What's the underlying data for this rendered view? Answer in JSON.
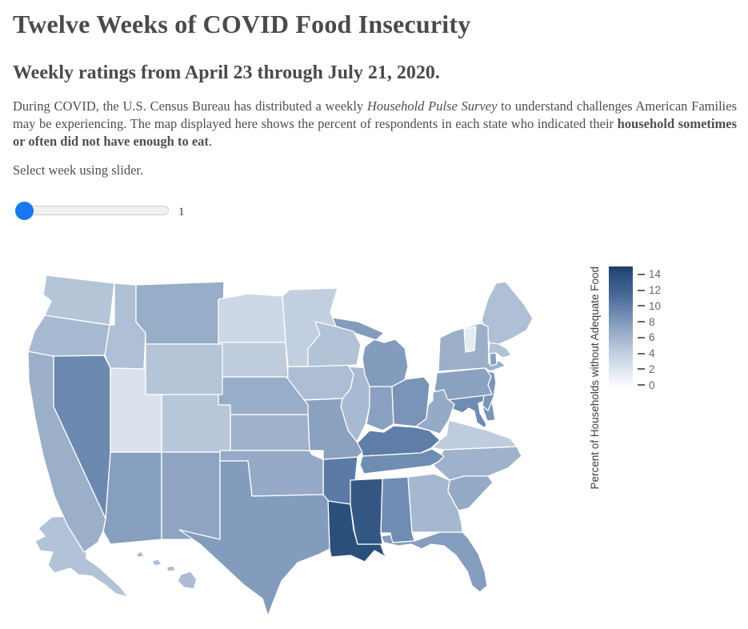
{
  "page": {
    "title": "Twelve Weeks of COVID Food Insecurity",
    "subtitle": "Weekly ratings from April 23 through July 21, 2020.",
    "description": {
      "part1": "During COVID, the U.S. Census Bureau has distributed a weekly ",
      "italic": "Household Pulse Survey",
      "part2": " to understand challenges American Families may be experiencing. The map displayed here shows the percent of respondents in each state who indicated their ",
      "bold": "household sometimes or often did not have enough to eat",
      "part3": "."
    },
    "slider_instruction": "Select week using slider."
  },
  "slider": {
    "value": "1"
  },
  "chart_data": {
    "type": "choropleth",
    "region": "USA states",
    "week_shown": 1,
    "legend_title": "Percent of Households without Adequate Food",
    "colorbar": {
      "ticks": [
        0,
        2,
        4,
        6,
        8,
        10,
        12,
        14
      ],
      "domain": [
        0,
        15
      ]
    },
    "colorscale": [
      [
        0,
        "#f9fafd"
      ],
      [
        2,
        "#dde5ef"
      ],
      [
        4,
        "#c2cfe0"
      ],
      [
        6,
        "#a2b5cd"
      ],
      [
        8,
        "#8099bb"
      ],
      [
        10,
        "#5e7ea8"
      ],
      [
        12,
        "#40618f"
      ],
      [
        14,
        "#2a4f7b"
      ],
      [
        15,
        "#1d3f68"
      ]
    ],
    "unit": "percent of households",
    "states": [
      {
        "abbr": "AL",
        "name": "Alabama",
        "value": 9
      },
      {
        "abbr": "AK",
        "name": "Alaska",
        "value": 5
      },
      {
        "abbr": "AZ",
        "name": "Arizona",
        "value": 7.6
      },
      {
        "abbr": "AR",
        "name": "Arkansas",
        "value": 10.2
      },
      {
        "abbr": "CA",
        "name": "California",
        "value": 6.4
      },
      {
        "abbr": "CO",
        "name": "Colorado",
        "value": 4.6
      },
      {
        "abbr": "CT",
        "name": "Connecticut",
        "value": 7.2
      },
      {
        "abbr": "DE",
        "name": "Delaware",
        "value": 8.4
      },
      {
        "abbr": "FL",
        "name": "Florida",
        "value": 7.7
      },
      {
        "abbr": "GA",
        "name": "Georgia",
        "value": 5.8
      },
      {
        "abbr": "HI",
        "name": "Hawaii",
        "value": 5.4
      },
      {
        "abbr": "ID",
        "name": "Idaho",
        "value": 5.2
      },
      {
        "abbr": "IL",
        "name": "Illinois",
        "value": 5.6
      },
      {
        "abbr": "IN",
        "name": "Indiana",
        "value": 7.5
      },
      {
        "abbr": "IA",
        "name": "Iowa",
        "value": 5.3
      },
      {
        "abbr": "KS",
        "name": "Kansas",
        "value": 6.2
      },
      {
        "abbr": "KY",
        "name": "Kentucky",
        "value": 10
      },
      {
        "abbr": "LA",
        "name": "Louisiana",
        "value": 14
      },
      {
        "abbr": "ME",
        "name": "Maine",
        "value": 5.2
      },
      {
        "abbr": "MD",
        "name": "Maryland",
        "value": 9
      },
      {
        "abbr": "MA",
        "name": "Massachusetts",
        "value": 5
      },
      {
        "abbr": "MI",
        "name": "Michigan",
        "value": 7.8
      },
      {
        "abbr": "MN",
        "name": "Minnesota",
        "value": 4
      },
      {
        "abbr": "MS",
        "name": "Mississippi",
        "value": 13.2
      },
      {
        "abbr": "MO",
        "name": "Missouri",
        "value": 7.4
      },
      {
        "abbr": "MT",
        "name": "Montana",
        "value": 6.6
      },
      {
        "abbr": "NE",
        "name": "Nebraska",
        "value": 6.6
      },
      {
        "abbr": "NV",
        "name": "Nevada",
        "value": 9.2
      },
      {
        "abbr": "NH",
        "name": "New Hampshire",
        "value": 2
      },
      {
        "abbr": "NJ",
        "name": "New Jersey",
        "value": 8.3
      },
      {
        "abbr": "NM",
        "name": "New Mexico",
        "value": 7.2
      },
      {
        "abbr": "NY",
        "name": "New York",
        "value": 6.4
      },
      {
        "abbr": "NC",
        "name": "North Carolina",
        "value": 6.2
      },
      {
        "abbr": "ND",
        "name": "North Dakota",
        "value": 3.2
      },
      {
        "abbr": "OH",
        "name": "Ohio",
        "value": 8.4
      },
      {
        "abbr": "OK",
        "name": "Oklahoma",
        "value": 6.8
      },
      {
        "abbr": "OR",
        "name": "Oregon",
        "value": 5.6
      },
      {
        "abbr": "PA",
        "name": "Pennsylvania",
        "value": 7.4
      },
      {
        "abbr": "RI",
        "name": "Rhode Island",
        "value": 7.6
      },
      {
        "abbr": "SC",
        "name": "South Carolina",
        "value": 6.8
      },
      {
        "abbr": "SD",
        "name": "South Dakota",
        "value": 4.2
      },
      {
        "abbr": "TN",
        "name": "Tennessee",
        "value": 9
      },
      {
        "abbr": "TX",
        "name": "Texas",
        "value": 7.8
      },
      {
        "abbr": "UT",
        "name": "Utah",
        "value": 2.4
      },
      {
        "abbr": "VT",
        "name": "Vermont",
        "value": 1.4
      },
      {
        "abbr": "VA",
        "name": "Virginia",
        "value": 4.2
      },
      {
        "abbr": "WA",
        "name": "Washington",
        "value": 4.8
      },
      {
        "abbr": "WV",
        "name": "West Virginia",
        "value": 6.8
      },
      {
        "abbr": "WI",
        "name": "Wisconsin",
        "value": 5
      },
      {
        "abbr": "WY",
        "name": "Wyoming",
        "value": 4.8
      }
    ]
  }
}
